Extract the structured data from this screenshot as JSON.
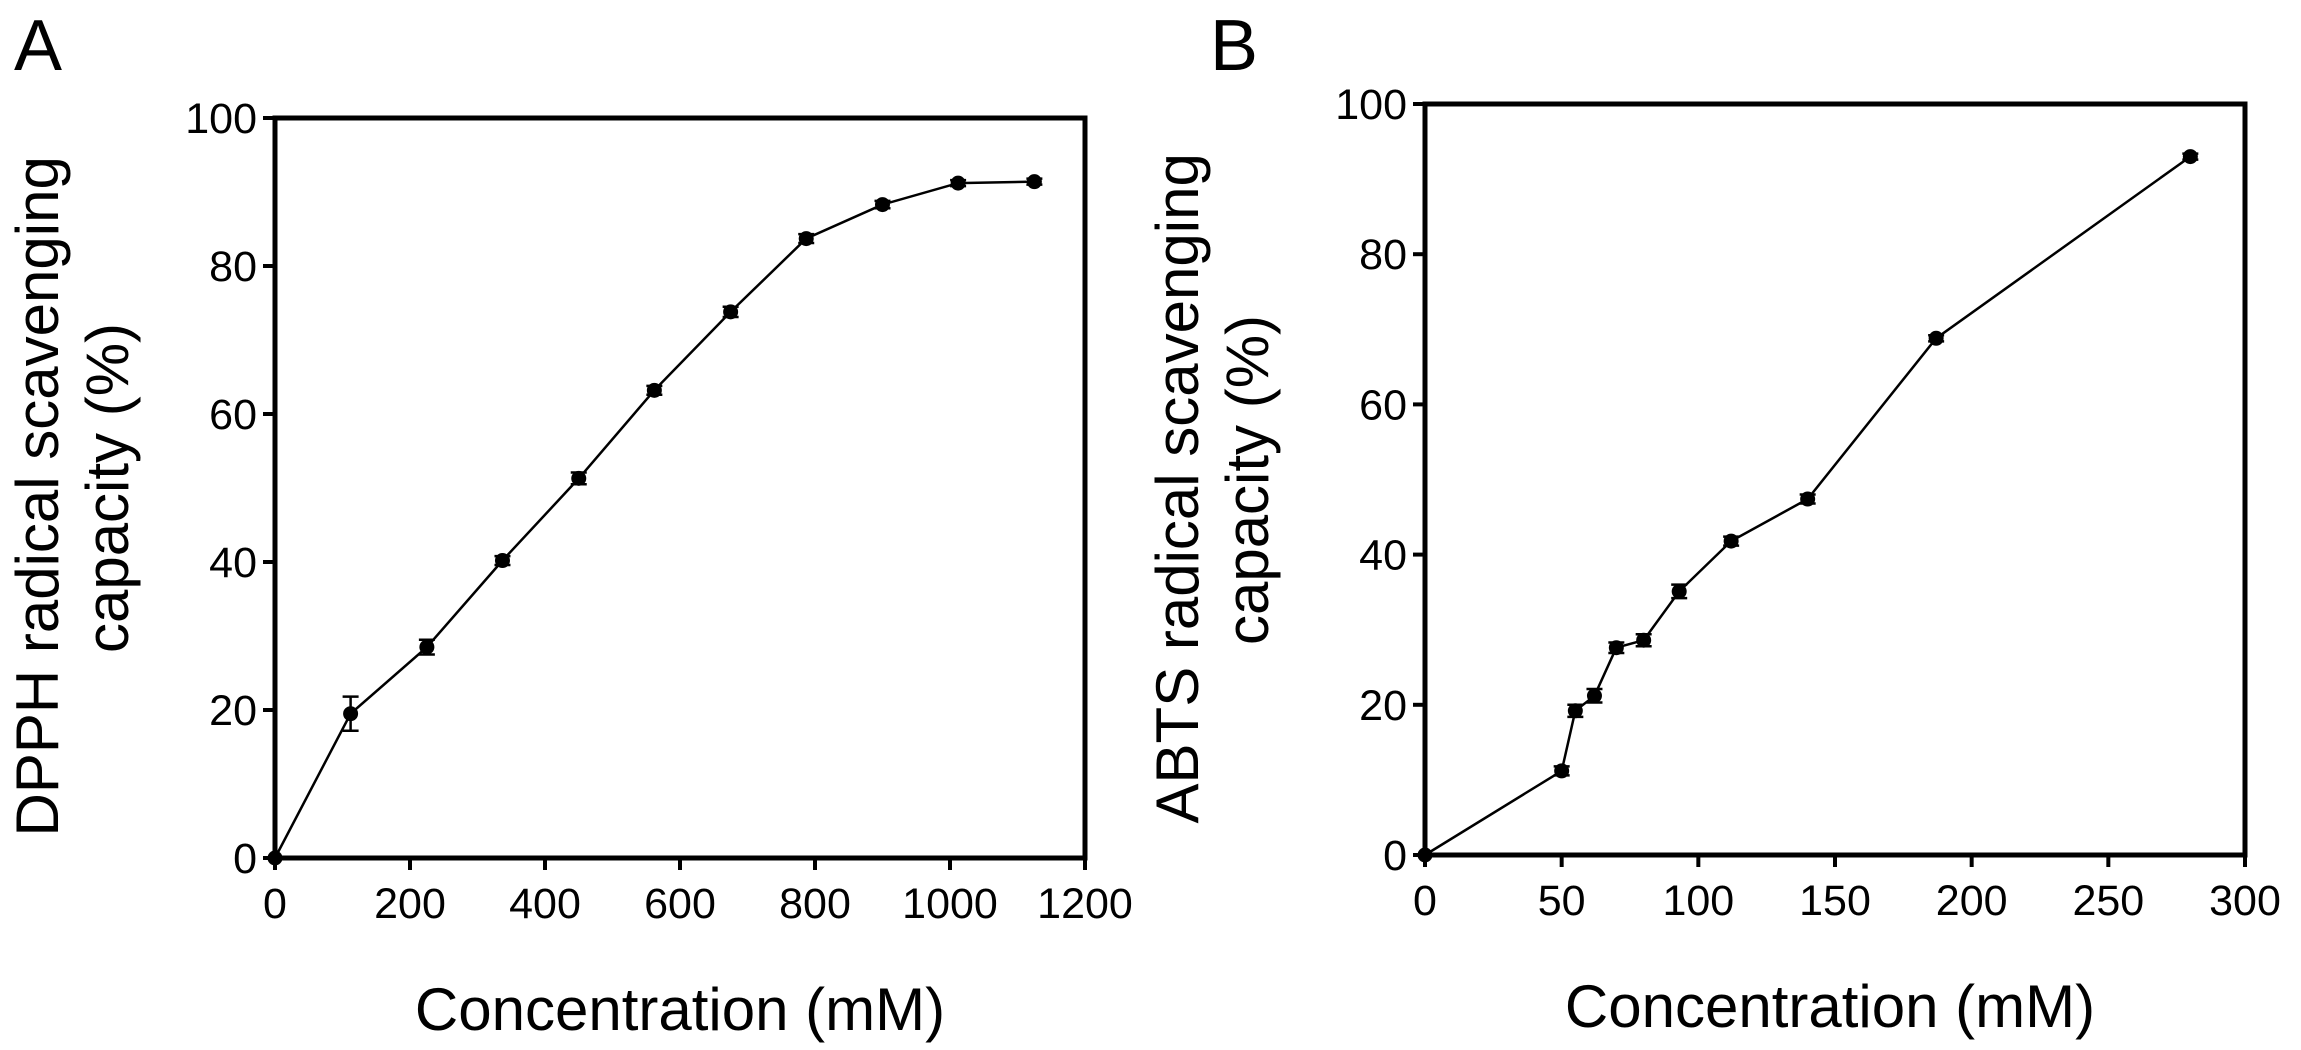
{
  "chart_data": [
    {
      "panel_label": "A",
      "type": "line",
      "title": "",
      "xlabel": "Concentration (mM)",
      "ylabel_lines": [
        "DPPH radical scavenging",
        "capacity (%)"
      ],
      "xlim": [
        0,
        1200
      ],
      "ylim": [
        0,
        100
      ],
      "x_ticks": [
        0,
        200,
        400,
        600,
        800,
        1000,
        1200
      ],
      "y_ticks": [
        0,
        20,
        40,
        60,
        80,
        100
      ],
      "x_tick_labels": [
        "0",
        "200",
        "400",
        "600",
        "800",
        "1000",
        "1200"
      ],
      "y_tick_labels": [
        "0",
        "20",
        "40",
        "60",
        "80",
        "100"
      ],
      "grid": false,
      "series": [
        {
          "x": [
            0,
            112,
            225,
            337,
            450,
            562,
            675,
            787,
            900,
            1012,
            1125
          ],
          "y": [
            0,
            19.5,
            28.5,
            40.2,
            51.3,
            63.2,
            73.8,
            83.7,
            88.3,
            91.2,
            91.4
          ],
          "error": [
            0,
            2.3,
            1.0,
            0.6,
            0.8,
            0.6,
            0.7,
            0.6,
            0.5,
            0.4,
            0.4
          ]
        }
      ]
    },
    {
      "panel_label": "B",
      "type": "line",
      "title": "",
      "xlabel": "Concentration (mM)",
      "ylabel_lines": [
        "ABTS radical scavenging",
        "capacity (%)"
      ],
      "xlim": [
        0,
        300
      ],
      "ylim": [
        0,
        100
      ],
      "x_ticks": [
        0,
        50,
        100,
        150,
        200,
        250,
        300
      ],
      "y_ticks": [
        0,
        20,
        40,
        60,
        80,
        100
      ],
      "x_tick_labels": [
        "0",
        "50",
        "100",
        "150",
        "200",
        "250",
        "300"
      ],
      "y_tick_labels": [
        "0",
        "20",
        "40",
        "60",
        "80",
        "100"
      ],
      "grid": false,
      "series": [
        {
          "x": [
            0,
            50,
            55,
            62,
            70,
            80,
            93,
            112,
            140,
            187,
            280
          ],
          "y": [
            0,
            11.2,
            19.2,
            21.2,
            27.6,
            28.6,
            35.1,
            41.8,
            47.4,
            68.8,
            93.0
          ],
          "error": [
            0,
            0.6,
            0.8,
            0.9,
            0.7,
            0.8,
            0.9,
            0.6,
            0.6,
            0.4,
            0.4
          ]
        }
      ]
    }
  ]
}
